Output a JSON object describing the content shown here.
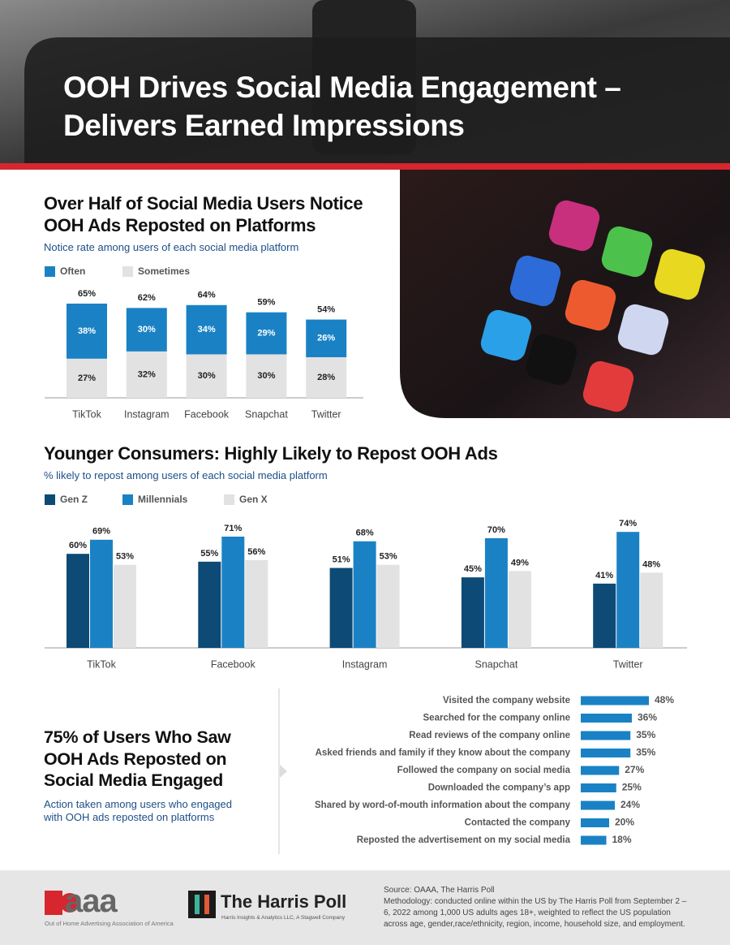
{
  "header": {
    "title": "OOH Drives Social Media Engagement – Delivers Earned Impressions"
  },
  "chart_data": [
    {
      "type": "stacked-bar",
      "title": "Over Half of Social Media Users Notice OOH Ads Reposted on Platforms",
      "subtitle": "Notice rate among users of each social media platform",
      "categories": [
        "TikTok",
        "Instagram",
        "Facebook",
        "Snapchat",
        "Twitter"
      ],
      "series": [
        {
          "name": "Often",
          "color": "#1a82c4",
          "values": [
            38,
            30,
            34,
            29,
            26
          ],
          "value_labels": [
            "38%",
            "30%",
            "34%",
            "29%",
            "26%"
          ]
        },
        {
          "name": "Sometimes",
          "color": "#e2e2e2",
          "values": [
            27,
            32,
            30,
            30,
            28
          ],
          "value_labels": [
            "27%",
            "32%",
            "30%",
            "30%",
            "28%"
          ]
        }
      ],
      "totals": [
        65,
        62,
        64,
        59,
        54
      ],
      "total_labels": [
        "65%",
        "62%",
        "64%",
        "59%",
        "54%"
      ]
    },
    {
      "type": "grouped-bar",
      "title": "Younger Consumers: Highly Likely to Repost OOH Ads",
      "subtitle": "% likely to repost among users of each social media platform",
      "categories": [
        "TikTok",
        "Facebook",
        "Instagram",
        "Snapchat",
        "Twitter"
      ],
      "series": [
        {
          "name": "Gen Z",
          "color": "#0d4a75",
          "values": [
            60,
            55,
            51,
            45,
            41
          ],
          "value_labels": [
            "60%",
            "55%",
            "51%",
            "45%",
            "41%"
          ]
        },
        {
          "name": "Millennials",
          "color": "#1a82c4",
          "values": [
            69,
            71,
            68,
            70,
            74
          ],
          "value_labels": [
            "69%",
            "71%",
            "68%",
            "70%",
            "74%"
          ]
        },
        {
          "name": "Gen X",
          "color": "#e2e2e2",
          "values": [
            53,
            56,
            53,
            49,
            48
          ],
          "value_labels": [
            "53%",
            "56%",
            "53%",
            "49%",
            "48%"
          ]
        }
      ]
    },
    {
      "type": "horizontal-bar",
      "title": "75% of Users Who Saw OOH Ads Reposted on Social Media Engaged",
      "subtitle": "Action taken among users who engaged with OOH ads reposted on platforms",
      "categories": [
        "Visited the company website",
        "Searched for the company online",
        "Read reviews of the company online",
        "Asked friends and family if they know about the company",
        "Followed the company on social media",
        "Downloaded the company’s app",
        "Shared by word-of-mouth information about the company",
        "Contacted the company",
        "Reposted the advertisement on my social media"
      ],
      "values": [
        48,
        36,
        35,
        35,
        27,
        25,
        24,
        20,
        18
      ],
      "value_labels": [
        "48%",
        "36%",
        "35%",
        "35%",
        "27%",
        "25%",
        "24%",
        "20%",
        "18%"
      ],
      "color": "#1a82c4"
    }
  ],
  "footer": {
    "oaaa_logo": "aaa",
    "oaaa_name": "Out of Home Advertising Association of America",
    "harris_logo": "The Harris Poll",
    "harris_tagline": "Harris Insights & Analytics LLC, A Stagwell Company",
    "source": "Source: OAAA, The Harris Poll",
    "methodology": "Methodology: conducted online within the US by The Harris Poll from September 2 – 6, 2022 among 1,000 US adults ages 18+, weighted to reflect the US population across age, gender,race/ethnicity, region, income, household size, and employment."
  }
}
